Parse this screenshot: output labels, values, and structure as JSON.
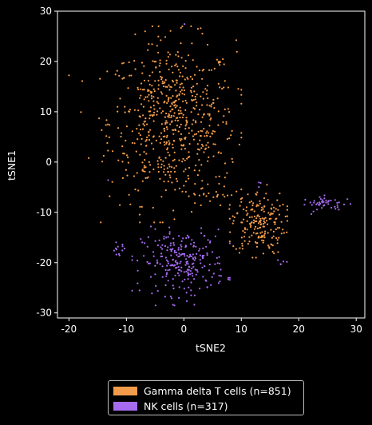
{
  "chart_data": {
    "type": "scatter",
    "title": "",
    "xlabel": "tSNE2",
    "ylabel": "tSNE1",
    "xlim": [
      -22,
      31.5
    ],
    "ylim": [
      -31,
      30
    ],
    "xticks": [
      -20,
      -10,
      0,
      10,
      20,
      30
    ],
    "yticks": [
      -30,
      -20,
      -10,
      0,
      10,
      20,
      30
    ],
    "grid": false,
    "legend_position": "bottom-center, below plot",
    "series": [
      {
        "name": "Gamma delta T cells (n=851)",
        "color": "#F29B4B",
        "n": 851,
        "clusters": [
          {
            "cx": -2,
            "cy": 8,
            "sx": 5.5,
            "sy": 8,
            "count": 640,
            "xr": [
              -20,
              10
            ],
            "yr": [
              -12,
              27
            ]
          },
          {
            "cx": 13,
            "cy": -12,
            "sx": 2.3,
            "sy": 3.2,
            "count": 190,
            "xr": [
              8,
              18
            ],
            "yr": [
              -19,
              -4
            ]
          },
          {
            "cx": 5,
            "cy": -6,
            "sx": 2.5,
            "sy": 3,
            "count": 21,
            "xr": [
              0,
              10
            ],
            "yr": [
              -11,
              0
            ]
          }
        ]
      },
      {
        "name": "NK cells (n=317)",
        "color": "#A66BF0",
        "n": 317,
        "clusters": [
          {
            "cx": 0,
            "cy": -20,
            "sx": 3.6,
            "sy": 3.2,
            "count": 250,
            "xr": [
              -9,
              8
            ],
            "yr": [
              -28.5,
              -10
            ]
          },
          {
            "cx": -11.5,
            "cy": -17.5,
            "sx": 0.7,
            "sy": 0.7,
            "count": 12,
            "xr": [
              -13,
              -10
            ],
            "yr": [
              -19,
              -15.5
            ]
          },
          {
            "cx": 25,
            "cy": -8.3,
            "sx": 2.2,
            "sy": 0.7,
            "count": 45,
            "xr": [
              21,
              29
            ],
            "yr": [
              -10.5,
              -6.5
            ]
          },
          {
            "cx": 17,
            "cy": -20,
            "sx": 0.5,
            "sy": 0.6,
            "count": 5,
            "xr": [
              16,
              18
            ],
            "yr": [
              -21,
              -19
            ]
          },
          {
            "cx": -14,
            "cy": -3.5,
            "sx": 0.3,
            "sy": 0.3,
            "count": 1,
            "xr": [
              -15,
              -13
            ],
            "yr": [
              -4,
              -3
            ]
          },
          {
            "cx": 0,
            "cy": 27.5,
            "sx": 0.2,
            "sy": 0.2,
            "count": 1,
            "xr": [
              -1,
              1
            ],
            "yr": [
              27,
              28
            ]
          },
          {
            "cx": 13,
            "cy": -4.3,
            "sx": 0.3,
            "sy": 0.3,
            "count": 3,
            "xr": [
              12,
              14
            ],
            "yr": [
              -5,
              -3.5
            ]
          }
        ]
      }
    ]
  }
}
